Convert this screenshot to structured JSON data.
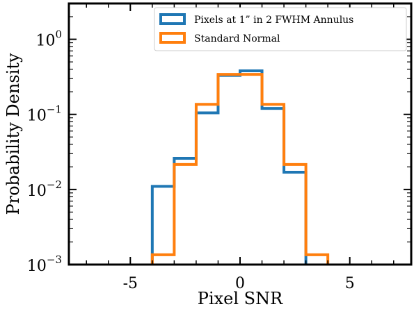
{
  "chart_data": {
    "type": "histogram",
    "xlabel": "Pixel SNR",
    "ylabel": "Probability Density",
    "xlim": [
      -7.8,
      7.8
    ],
    "ylim": [
      0.001,
      3.0
    ],
    "yscale": "log",
    "x_ticks": [
      -5,
      0,
      5
    ],
    "x_tick_labels": [
      "-5",
      "0",
      "5"
    ],
    "y_ticks": [
      {
        "value": 0.001,
        "base": "10",
        "exp": "−3"
      },
      {
        "value": 0.01,
        "base": "10",
        "exp": "−2"
      },
      {
        "value": 0.1,
        "base": "10",
        "exp": "−1"
      },
      {
        "value": 1,
        "base": "10",
        "exp": "0"
      }
    ],
    "grid": false,
    "legend_position": "top-right",
    "bin_edges": [
      -4,
      -3,
      -2,
      -1,
      0,
      1,
      2,
      3,
      4
    ],
    "series": [
      {
        "name": "Pixels at 1” in 2 FWHM Annulus",
        "color": "#1f77b4",
        "values": [
          0.011,
          0.026,
          0.105,
          0.33,
          0.38,
          0.12,
          0.017,
          0.00095
        ]
      },
      {
        "name": "Standard Normal",
        "color": "#ff7f0e",
        "values": [
          0.00135,
          0.0215,
          0.136,
          0.341,
          0.341,
          0.136,
          0.0215,
          0.00135
        ]
      }
    ]
  }
}
